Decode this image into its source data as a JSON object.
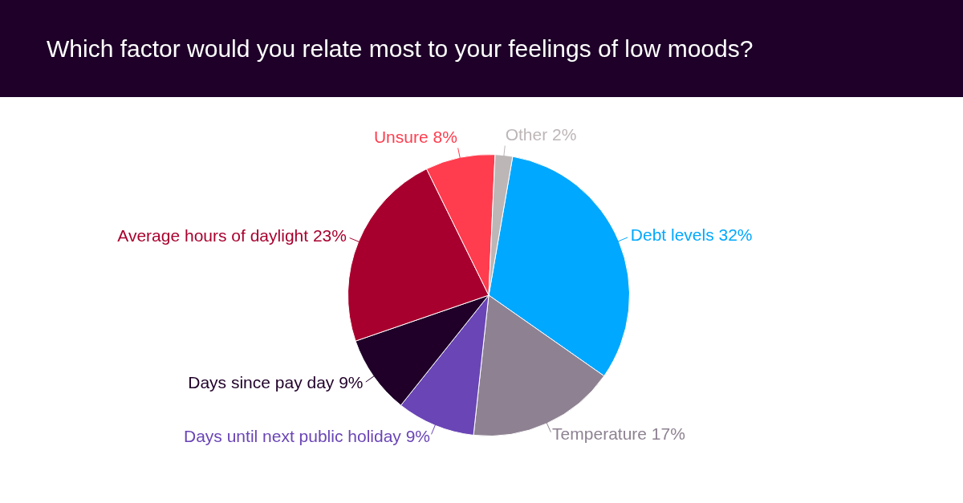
{
  "chart_data": {
    "type": "pie",
    "title": "Which factor would you relate most to your feelings of low moods?",
    "categories": [
      "Debt levels",
      "Temperature",
      "Days until next public holiday",
      "Days since pay day",
      "Average hours of daylight",
      "Unsure",
      "Other"
    ],
    "values": [
      32,
      17,
      9,
      9,
      23,
      8,
      2
    ],
    "value_labels": [
      "32%",
      "17%",
      "9%",
      "9%",
      "23%",
      "8%",
      "2%"
    ],
    "colors": [
      "#00a8ff",
      "#8e8292",
      "#6a45b6",
      "#200029",
      "#a8002e",
      "#ff3d4e",
      "#bdb6b7"
    ],
    "legend": false
  }
}
